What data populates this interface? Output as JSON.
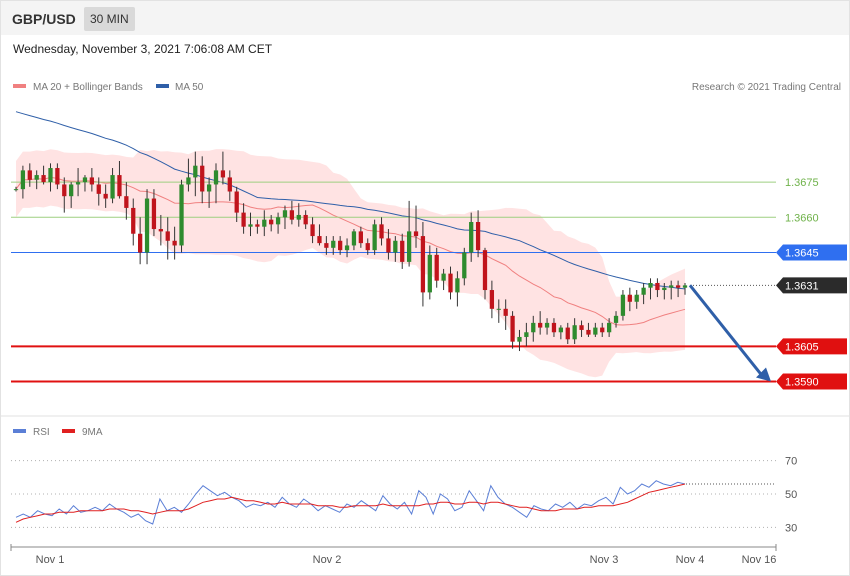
{
  "header": {
    "symbol": "GBP/USD",
    "timeframe": "30 MIN",
    "datetime": "Wednesday, November 3, 2021 7:06:08 AM CET"
  },
  "legend": {
    "ma20": {
      "label": "MA 20 + Bollinger Bands",
      "color": "#f08080"
    },
    "ma50": {
      "label": "MA 50",
      "color": "#2f5fa8"
    },
    "credit": "Research © 2021 Trading Central"
  },
  "rsi_legend": {
    "rsi": {
      "label": "RSI",
      "color": "#5b7fd6"
    },
    "ma9": {
      "label": "9MA",
      "color": "#e02020"
    }
  },
  "colors": {
    "bull": "#2e8b2e",
    "bear": "#c0141c",
    "band_fill": "#ffe3e3",
    "resistance_green": "#9ecf80",
    "pivot_blue": "#2f6ff0",
    "support_red": "#e01010",
    "current_dark": "#2b2b2b",
    "arrow": "#2f5fa8"
  },
  "chart_data": {
    "type": "candlestick",
    "price_range": [
      1.358,
      1.371
    ],
    "x_axis_labels": [
      "Nov 1",
      "Nov 2",
      "Nov 3",
      "Nov 4",
      "Nov 16"
    ],
    "current_price": {
      "value": 1.3631,
      "label": "1.3631"
    },
    "levels": [
      {
        "value": 1.3675,
        "label": "1.3675",
        "kind": "resistance",
        "color": "#6fb24a"
      },
      {
        "value": 1.366,
        "label": "1.3660",
        "kind": "resistance",
        "color": "#6fb24a"
      },
      {
        "value": 1.3645,
        "label": "1.3645",
        "kind": "pivot",
        "color": "#2f6ff0"
      },
      {
        "value": 1.3605,
        "label": "1.3605",
        "kind": "support",
        "color": "#e01010"
      },
      {
        "value": 1.359,
        "label": "1.3590",
        "kind": "support",
        "color": "#e01010"
      }
    ],
    "forecast_arrow": {
      "from": 1.3631,
      "to": 1.359
    },
    "candles": [
      [
        1.3672,
        1.3673,
        1.3671,
        1.3672
      ],
      [
        1.3672,
        1.3682,
        1.3668,
        1.368
      ],
      [
        1.368,
        1.3683,
        1.3673,
        1.3676
      ],
      [
        1.3676,
        1.368,
        1.3672,
        1.3678
      ],
      [
        1.3678,
        1.3682,
        1.3674,
        1.3675
      ],
      [
        1.3675,
        1.3683,
        1.3671,
        1.3681
      ],
      [
        1.3681,
        1.3683,
        1.3672,
        1.3674
      ],
      [
        1.3674,
        1.3677,
        1.3662,
        1.3669
      ],
      [
        1.3669,
        1.3675,
        1.3664,
        1.3674
      ],
      [
        1.3674,
        1.3681,
        1.3669,
        1.3675
      ],
      [
        1.3675,
        1.3678,
        1.3671,
        1.3677
      ],
      [
        1.3677,
        1.3681,
        1.3671,
        1.3674
      ],
      [
        1.3674,
        1.3677,
        1.3665,
        1.367
      ],
      [
        1.367,
        1.3674,
        1.3664,
        1.3668
      ],
      [
        1.3668,
        1.3681,
        1.3666,
        1.3678
      ],
      [
        1.3678,
        1.3684,
        1.3668,
        1.3669
      ],
      [
        1.3669,
        1.3675,
        1.3659,
        1.3664
      ],
      [
        1.3664,
        1.3668,
        1.3648,
        1.3653
      ],
      [
        1.3653,
        1.366,
        1.364,
        1.3645
      ],
      [
        1.3645,
        1.3672,
        1.364,
        1.3668
      ],
      [
        1.3668,
        1.3672,
        1.3652,
        1.3655
      ],
      [
        1.3655,
        1.3661,
        1.3648,
        1.3654
      ],
      [
        1.3654,
        1.366,
        1.3642,
        1.365
      ],
      [
        1.365,
        1.3656,
        1.3642,
        1.3648
      ],
      [
        1.3648,
        1.3676,
        1.3645,
        1.3674
      ],
      [
        1.3674,
        1.3685,
        1.3671,
        1.3677
      ],
      [
        1.3677,
        1.3688,
        1.3669,
        1.3682
      ],
      [
        1.3682,
        1.3686,
        1.3666,
        1.3671
      ],
      [
        1.3671,
        1.3677,
        1.3664,
        1.3674
      ],
      [
        1.3674,
        1.3683,
        1.3666,
        1.368
      ],
      [
        1.368,
        1.3688,
        1.3674,
        1.3677
      ],
      [
        1.3677,
        1.368,
        1.3667,
        1.3671
      ],
      [
        1.3671,
        1.3673,
        1.3658,
        1.3662
      ],
      [
        1.3662,
        1.3666,
        1.3653,
        1.3656
      ],
      [
        1.3656,
        1.3662,
        1.3652,
        1.3657
      ],
      [
        1.3657,
        1.3659,
        1.3653,
        1.3656
      ],
      [
        1.3656,
        1.3663,
        1.3652,
        1.3659
      ],
      [
        1.3659,
        1.3661,
        1.3654,
        1.3657
      ],
      [
        1.3657,
        1.3662,
        1.3653,
        1.366
      ],
      [
        1.366,
        1.3665,
        1.3655,
        1.3663
      ],
      [
        1.3663,
        1.3667,
        1.3657,
        1.3659
      ],
      [
        1.3659,
        1.3666,
        1.3656,
        1.3661
      ],
      [
        1.3661,
        1.3663,
        1.3655,
        1.3657
      ],
      [
        1.3657,
        1.366,
        1.3649,
        1.3652
      ],
      [
        1.3652,
        1.3657,
        1.3648,
        1.3649
      ],
      [
        1.3649,
        1.3652,
        1.3644,
        1.3647
      ],
      [
        1.3647,
        1.3652,
        1.3644,
        1.365
      ],
      [
        1.365,
        1.3652,
        1.3644,
        1.3646
      ],
      [
        1.3646,
        1.3651,
        1.3643,
        1.3648
      ],
      [
        1.3648,
        1.3655,
        1.3646,
        1.3654
      ],
      [
        1.3654,
        1.3656,
        1.3647,
        1.3649
      ],
      [
        1.3649,
        1.3651,
        1.3644,
        1.3646
      ],
      [
        1.3646,
        1.3659,
        1.3644,
        1.3657
      ],
      [
        1.3657,
        1.366,
        1.3648,
        1.3651
      ],
      [
        1.3651,
        1.3655,
        1.3642,
        1.3645
      ],
      [
        1.3645,
        1.3652,
        1.3641,
        1.365
      ],
      [
        1.365,
        1.3653,
        1.3638,
        1.3641
      ],
      [
        1.3641,
        1.3667,
        1.3639,
        1.3654
      ],
      [
        1.3654,
        1.3665,
        1.3647,
        1.3652
      ],
      [
        1.3652,
        1.3658,
        1.3622,
        1.3628
      ],
      [
        1.3628,
        1.3648,
        1.3625,
        1.3644
      ],
      [
        1.3644,
        1.3647,
        1.363,
        1.3633
      ],
      [
        1.3633,
        1.3638,
        1.3629,
        1.3636
      ],
      [
        1.3636,
        1.3639,
        1.3625,
        1.3628
      ],
      [
        1.3628,
        1.3637,
        1.3622,
        1.3634
      ],
      [
        1.3634,
        1.3647,
        1.3631,
        1.3645
      ],
      [
        1.3645,
        1.3662,
        1.3641,
        1.3658
      ],
      [
        1.3658,
        1.3663,
        1.3643,
        1.3646
      ],
      [
        1.3646,
        1.3647,
        1.3625,
        1.3629
      ],
      [
        1.3629,
        1.3633,
        1.3617,
        1.3621
      ],
      [
        1.3621,
        1.3625,
        1.3615,
        1.3621
      ],
      [
        1.3621,
        1.3625,
        1.3612,
        1.3618
      ],
      [
        1.3618,
        1.362,
        1.3604,
        1.3607
      ],
      [
        1.3607,
        1.3612,
        1.3603,
        1.3609
      ],
      [
        1.3609,
        1.3615,
        1.3605,
        1.3611
      ],
      [
        1.3611,
        1.3618,
        1.3607,
        1.3615
      ],
      [
        1.3615,
        1.362,
        1.361,
        1.3613
      ],
      [
        1.3613,
        1.3617,
        1.361,
        1.3615
      ],
      [
        1.3615,
        1.3617,
        1.3609,
        1.3611
      ],
      [
        1.3611,
        1.3614,
        1.3608,
        1.3613
      ],
      [
        1.3613,
        1.3615,
        1.3606,
        1.3608
      ],
      [
        1.3608,
        1.3617,
        1.3606,
        1.3614
      ],
      [
        1.3614,
        1.3616,
        1.3609,
        1.3612
      ],
      [
        1.3612,
        1.3615,
        1.3609,
        1.361
      ],
      [
        1.361,
        1.3615,
        1.3609,
        1.3613
      ],
      [
        1.3613,
        1.3615,
        1.3609,
        1.3611
      ],
      [
        1.3611,
        1.3617,
        1.3609,
        1.3615
      ],
      [
        1.3615,
        1.362,
        1.3613,
        1.3618
      ],
      [
        1.3618,
        1.3629,
        1.3616,
        1.3627
      ],
      [
        1.3627,
        1.363,
        1.362,
        1.3624
      ],
      [
        1.3624,
        1.3629,
        1.3621,
        1.3627
      ],
      [
        1.3627,
        1.3632,
        1.3623,
        1.363
      ],
      [
        1.363,
        1.3634,
        1.3625,
        1.3632
      ],
      [
        1.3632,
        1.3634,
        1.3626,
        1.3629
      ],
      [
        1.3629,
        1.3632,
        1.3625,
        1.363
      ],
      [
        1.363,
        1.3633,
        1.3625,
        1.3631
      ],
      [
        1.3631,
        1.3633,
        1.3626,
        1.363
      ],
      [
        1.363,
        1.3632,
        1.3627,
        1.3631
      ]
    ],
    "rsi": {
      "ticks": [
        70,
        50,
        30
      ],
      "range": [
        20,
        80
      ],
      "rsi_values": [
        36,
        38,
        36,
        40,
        38,
        37,
        41,
        38,
        43,
        39,
        40,
        42,
        40,
        44,
        41,
        39,
        36,
        38,
        34,
        32,
        47,
        40,
        42,
        39,
        44,
        50,
        55,
        52,
        49,
        51,
        48,
        46,
        42,
        44,
        43,
        45,
        42,
        48,
        44,
        42,
        47,
        44,
        40,
        43,
        41,
        39,
        44,
        42,
        46,
        43,
        40,
        49,
        44,
        41,
        45,
        38,
        52,
        48,
        38,
        50,
        47,
        40,
        42,
        52,
        46,
        40,
        55,
        48,
        44,
        42,
        39,
        36,
        43,
        41,
        40,
        44,
        42,
        45,
        41,
        44,
        43,
        46,
        48,
        44,
        54,
        50,
        52,
        56,
        54,
        58,
        56,
        55,
        57,
        56
      ],
      "ma9_values": [
        33,
        35,
        36,
        37,
        38,
        38,
        39,
        39,
        39,
        40,
        40,
        40,
        40,
        41,
        41,
        41,
        40,
        40,
        39,
        38,
        39,
        40,
        40,
        40,
        41,
        43,
        45,
        46,
        47,
        47,
        48,
        47,
        46,
        46,
        45,
        44,
        44,
        45,
        44,
        44,
        44,
        44,
        43,
        43,
        43,
        42,
        42,
        43,
        43,
        43,
        43,
        44,
        43,
        43,
        43,
        43,
        43,
        44,
        44,
        45,
        45,
        44,
        44,
        45,
        45,
        44,
        45,
        45,
        44,
        43,
        42,
        42,
        41,
        40,
        40,
        40,
        41,
        41,
        41,
        42,
        42,
        43,
        43,
        43,
        44,
        45,
        47,
        49,
        51,
        52,
        53,
        54,
        55,
        56
      ]
    }
  }
}
